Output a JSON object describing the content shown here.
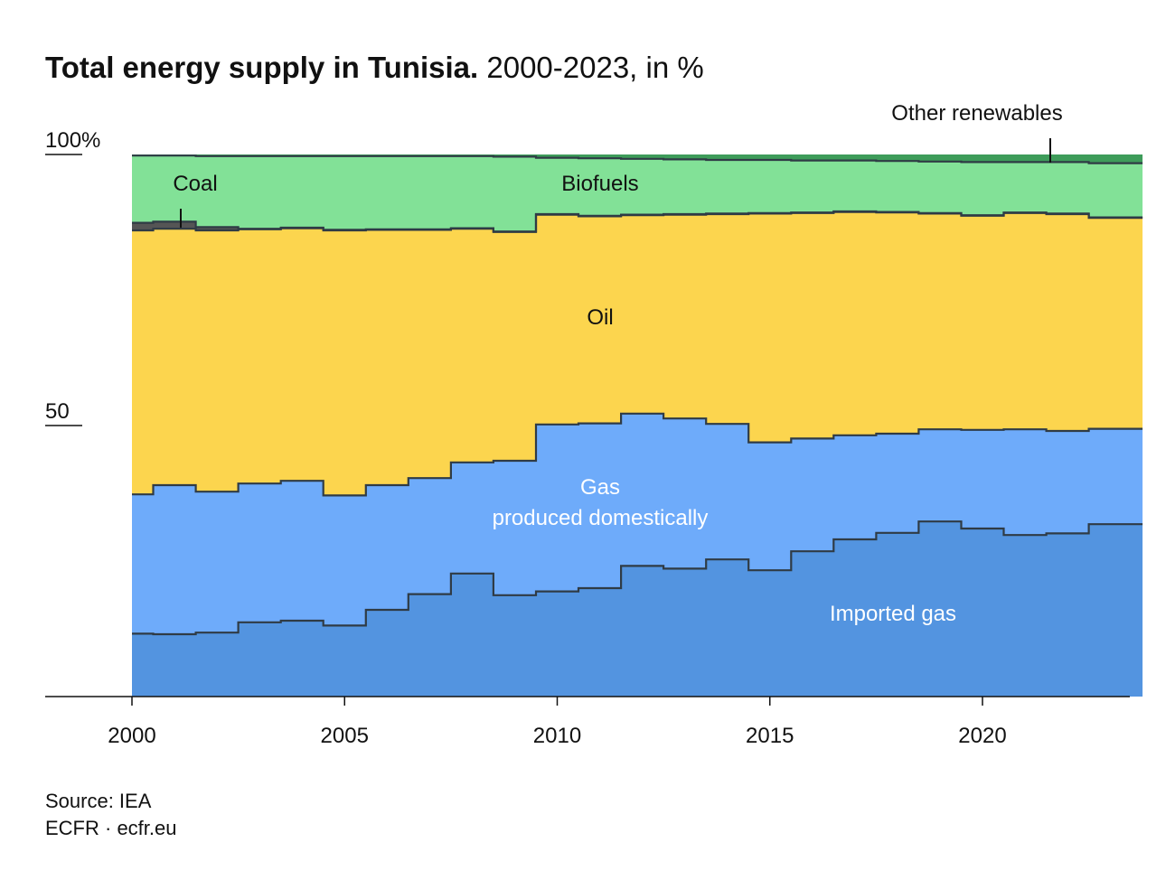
{
  "title": "Total energy supply in Tunisia.",
  "subtitle": "2000-2023, in %",
  "source": "Source: IEA",
  "credit": "ECFR · ecfr.eu",
  "chart_data": {
    "type": "area",
    "stacking": "stacked-percent",
    "step": true,
    "x": [
      2000,
      2001,
      2002,
      2003,
      2004,
      2005,
      2006,
      2007,
      2008,
      2009,
      2010,
      2011,
      2012,
      2013,
      2014,
      2015,
      2016,
      2017,
      2018,
      2019,
      2020,
      2021,
      2022,
      2023
    ],
    "xlim": [
      1998,
      2023.4
    ],
    "ylim": [
      0,
      100
    ],
    "x_ticks": [
      2000,
      2005,
      2010,
      2015,
      2020
    ],
    "y_ticks": [
      {
        "value": 100,
        "label": "100%"
      },
      {
        "value": 50,
        "label": "50"
      }
    ],
    "cumulative_tops": [
      {
        "name": "Imported gas",
        "values": [
          11.6,
          11.5,
          11.8,
          13.7,
          14.0,
          13.1,
          16.0,
          18.9,
          22.7,
          18.7,
          19.4,
          20.0,
          24.1,
          23.6,
          25.3,
          23.3,
          26.8,
          29.0,
          30.2,
          32.3,
          31.0,
          29.8,
          30.1,
          31.8
        ]
      },
      {
        "name": "Gas produced domestically",
        "values": [
          37.3,
          39.0,
          37.8,
          39.3,
          39.8,
          37.1,
          39.0,
          40.3,
          43.2,
          43.5,
          50.2,
          50.4,
          52.2,
          51.3,
          50.3,
          46.9,
          47.6,
          48.2,
          48.5,
          49.3,
          49.2,
          49.3,
          49.0,
          49.4
        ]
      },
      {
        "name": "Oil",
        "values": [
          86.0,
          86.3,
          86.0,
          86.2,
          86.4,
          86.0,
          86.1,
          86.1,
          86.3,
          85.7,
          88.9,
          88.6,
          88.8,
          88.9,
          89.0,
          89.1,
          89.2,
          89.4,
          89.3,
          89.1,
          88.7,
          89.2,
          89.0,
          88.3
        ]
      },
      {
        "name": "Coal",
        "values": [
          87.4,
          87.6,
          86.6,
          86.3,
          86.5,
          86.1,
          86.2,
          86.2,
          86.4,
          85.8,
          89.0,
          88.7,
          88.9,
          89.0,
          89.1,
          89.2,
          89.3,
          89.5,
          89.4,
          89.2,
          88.8,
          89.3,
          89.1,
          88.4
        ]
      },
      {
        "name": "Biofuels",
        "values": [
          99.8,
          99.8,
          99.7,
          99.7,
          99.7,
          99.7,
          99.7,
          99.7,
          99.7,
          99.6,
          99.4,
          99.3,
          99.2,
          99.1,
          99.0,
          99.0,
          98.9,
          98.9,
          98.8,
          98.7,
          98.6,
          98.6,
          98.6,
          98.4
        ]
      },
      {
        "name": "Other renewables",
        "values": [
          100,
          100,
          100,
          100,
          100,
          100,
          100,
          100,
          100,
          100,
          100,
          100,
          100,
          100,
          100,
          100,
          100,
          100,
          100,
          100,
          100,
          100,
          100,
          100
        ]
      }
    ],
    "colors": {
      "Imported gas": "#5394e0",
      "Gas produced domestically": "#6eabfa",
      "Oil": "#fcd54e",
      "Coal": "#555555",
      "Biofuels": "#82e197",
      "Other renewables": "#3e9c5a"
    },
    "labels": {
      "coal": "Coal",
      "biofuels": "Biofuels",
      "oil": "Oil",
      "gas_line1": "Gas",
      "gas_line2": "produced domestically",
      "imported_gas": "Imported gas",
      "other_renewables": "Other renewables"
    }
  }
}
